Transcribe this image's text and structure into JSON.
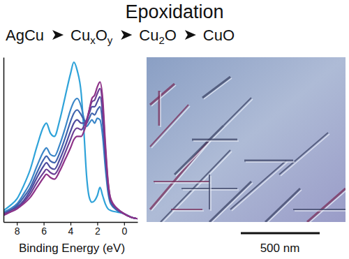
{
  "header": {
    "title": "Epoxidation",
    "sequence": [
      [
        {
          "text": "AgCu"
        }
      ],
      [
        {
          "text": "Cu"
        },
        {
          "sub": "x"
        },
        {
          "text": "O"
        },
        {
          "sub": "y"
        }
      ],
      [
        {
          "text": "Cu"
        },
        {
          "sub": "2"
        },
        {
          "text": "O"
        }
      ],
      [
        {
          "text": "CuO"
        }
      ]
    ]
  },
  "chart_data": {
    "type": "line",
    "x_label": "Binding Energy (eV)",
    "x": [
      9,
      8.5,
      8,
      7.5,
      7,
      6.5,
      6,
      5.8,
      5.5,
      5.2,
      4.8,
      4.4,
      4,
      3.75,
      3.5,
      3.2,
      3,
      2.8,
      2.6,
      2.4,
      2.2,
      2,
      1.8,
      1.6,
      1.4,
      1.2,
      1,
      0.5,
      0,
      -0.5,
      -1
    ],
    "series": [
      {
        "color": "#2fa3d9",
        "values": [
          7,
          10,
          14,
          22,
          32,
          46,
          58,
          60,
          54,
          52,
          62,
          76,
          90,
          97,
          92,
          78,
          55,
          28,
          15,
          12,
          13,
          16,
          21,
          16,
          11,
          8,
          7,
          6,
          5,
          3,
          2
        ]
      },
      {
        "color": "#3a86c8",
        "values": [
          6,
          8,
          11,
          17,
          24,
          34,
          43,
          45,
          41,
          40,
          47,
          57,
          68,
          73,
          75,
          70,
          63,
          58,
          60,
          62,
          60,
          63,
          62,
          52,
          33,
          18,
          11,
          7,
          5,
          3,
          2
        ]
      },
      {
        "color": "#3f63ad",
        "values": [
          5,
          7,
          10,
          15,
          21,
          30,
          38,
          40,
          37,
          36,
          42,
          51,
          61,
          66,
          68,
          65,
          62,
          60,
          63,
          66,
          65,
          68,
          70,
          60,
          38,
          20,
          12,
          7,
          5,
          3,
          2
        ]
      },
      {
        "color": "#4d4b9e",
        "values": [
          5,
          7,
          9,
          13,
          19,
          27,
          34,
          36,
          33,
          32,
          38,
          46,
          55,
          60,
          62,
          60,
          60,
          62,
          66,
          70,
          70,
          73,
          76,
          66,
          42,
          22,
          13,
          8,
          5,
          3,
          2
        ]
      },
      {
        "color": "#6b3f95",
        "values": [
          5,
          6,
          8,
          12,
          17,
          24,
          30,
          32,
          30,
          29,
          34,
          42,
          50,
          55,
          57,
          56,
          58,
          62,
          68,
          73,
          74,
          78,
          81,
          71,
          45,
          24,
          14,
          8,
          5,
          3,
          2
        ]
      },
      {
        "color": "#8e3388",
        "values": [
          4,
          6,
          8,
          11,
          15,
          21,
          27,
          29,
          27,
          26,
          31,
          38,
          45,
          50,
          52,
          52,
          55,
          60,
          68,
          75,
          77,
          82,
          85,
          75,
          48,
          25,
          14,
          8,
          5,
          3,
          2
        ]
      }
    ],
    "xlim": [
      9,
      -1
    ],
    "xticks": [
      8,
      6,
      4,
      2,
      0
    ],
    "ylim": [
      0,
      100
    ],
    "tick_labels": "x",
    "grid": false
  },
  "image": {
    "scale_bar": "500 nm"
  }
}
